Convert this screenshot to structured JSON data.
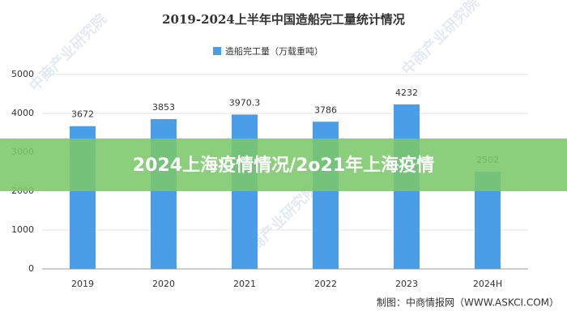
{
  "chart_data": {
    "type": "bar",
    "title": "2019-2024上半年中国造船完工量统计情况",
    "categories": [
      "2019",
      "2020",
      "2021",
      "2022",
      "2023",
      "2024H"
    ],
    "series": [
      {
        "name": "造船完工量（万载重吨）",
        "color": "#4a9ee8",
        "values": [
          3672,
          3853,
          3970.3,
          3786,
          4232,
          2502
        ]
      }
    ],
    "ylim": [
      0,
      5000
    ],
    "yticks": [
      0,
      1000,
      2000,
      3000,
      4000,
      5000
    ],
    "grid": true,
    "source": "制图：中商情报网（WWW.ASKCI.COM）",
    "watermark": "中商产业研究院"
  },
  "banner": "2024上海疫情情况/2o21年上海疫情"
}
